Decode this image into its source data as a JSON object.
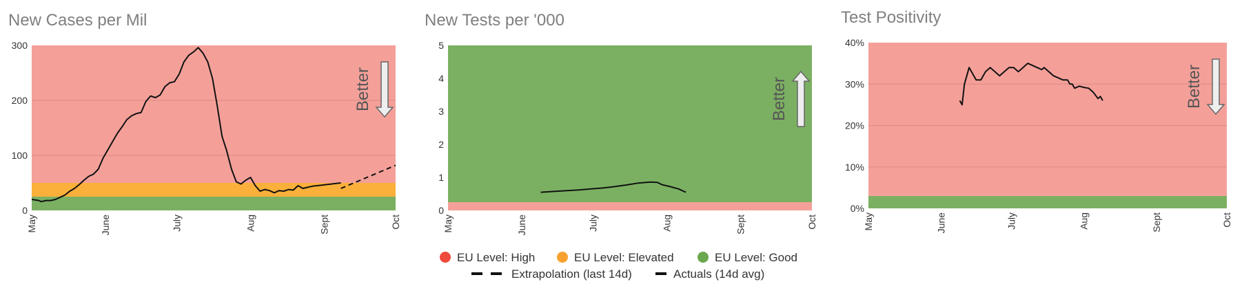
{
  "colors": {
    "high": "#f4a099",
    "elevated": "#fbb03b",
    "good": "#7bb062",
    "gridline": "#d98a84",
    "line": "#111111",
    "arrow_fill": "#eeeeee",
    "arrow_stroke": "#666666",
    "legend_high": "#ef4a3c",
    "legend_elevated": "#f8a12f",
    "legend_good": "#6aa84f"
  },
  "legend": {
    "high": "EU Level: High",
    "elevated": "EU Level: Elevated",
    "good": "EU Level: Good",
    "extrapolation": "Extrapolation (last 14d)",
    "actuals": "Actuals (14d avg)"
  },
  "chart_data": [
    {
      "type": "line",
      "title": "New Cases per Mil",
      "better_label": "Better",
      "better_direction": "down",
      "x_ticks": [
        "May",
        "June",
        "July",
        "Aug",
        "Sept",
        "Oct"
      ],
      "x_range": [
        0,
        153
      ],
      "ylim": [
        0,
        300
      ],
      "y_ticks": [
        0,
        100,
        200,
        300
      ],
      "y_tick_labels": [
        "0",
        "100",
        "200",
        "300"
      ],
      "bands": [
        {
          "level": "good",
          "from": 0,
          "to": 25
        },
        {
          "level": "elevated",
          "from": 25,
          "to": 50
        },
        {
          "level": "high",
          "from": 50,
          "to": 300
        }
      ],
      "gridlines": [
        100,
        200
      ],
      "series": [
        {
          "style": "solid",
          "x": [
            0,
            3,
            4,
            6,
            8,
            10,
            12,
            14,
            16,
            18,
            20,
            22,
            24,
            26,
            28,
            30,
            32,
            34,
            36,
            38,
            40,
            42,
            44,
            46,
            48,
            50,
            52,
            54,
            56,
            58,
            60,
            62,
            64,
            66,
            68,
            70,
            72,
            74,
            76,
            78,
            80,
            82,
            84,
            86,
            88,
            90,
            92,
            94,
            96,
            98,
            100,
            102,
            104,
            106,
            108,
            110,
            112,
            114,
            116,
            118,
            120,
            122,
            124,
            126,
            128,
            130
          ],
          "y": [
            20,
            18,
            16,
            18,
            18,
            20,
            24,
            28,
            35,
            40,
            47,
            55,
            62,
            66,
            75,
            95,
            110,
            125,
            140,
            152,
            165,
            172,
            176,
            178,
            198,
            208,
            205,
            210,
            225,
            232,
            234,
            248,
            270,
            282,
            288,
            296,
            286,
            270,
            240,
            190,
            135,
            108,
            75,
            52,
            48,
            55,
            60,
            45,
            35,
            38,
            36,
            32,
            36,
            35,
            38,
            37,
            45,
            40,
            42,
            44,
            45,
            46,
            47,
            48,
            49,
            50
          ]
        },
        {
          "style": "dashed",
          "x": [
            130,
            153
          ],
          "y": [
            40,
            82
          ]
        }
      ]
    },
    {
      "type": "line",
      "title": "New Tests per '000",
      "better_label": "Better",
      "better_direction": "up",
      "x_ticks": [
        "May",
        "June",
        "July",
        "Aug",
        "Sept",
        "Oct"
      ],
      "x_range": [
        0,
        153
      ],
      "ylim": [
        0,
        5
      ],
      "y_ticks": [
        0,
        1,
        2,
        3,
        4,
        5
      ],
      "y_tick_labels": [
        "0",
        "1",
        "2",
        "3",
        "4",
        "5"
      ],
      "bands": [
        {
          "level": "high",
          "from": 0,
          "to": 0.25
        },
        {
          "level": "good",
          "from": 0.25,
          "to": 5
        }
      ],
      "gridlines": [],
      "series": [
        {
          "style": "solid",
          "x": [
            39,
            45,
            50,
            55,
            60,
            65,
            70,
            75,
            80,
            85,
            88,
            90,
            93,
            97,
            100
          ],
          "y": [
            0.55,
            0.58,
            0.6,
            0.62,
            0.65,
            0.68,
            0.72,
            0.77,
            0.83,
            0.86,
            0.85,
            0.78,
            0.73,
            0.65,
            0.55
          ]
        }
      ]
    },
    {
      "type": "line",
      "title": "Test Positivity",
      "better_label": "Better",
      "better_direction": "down",
      "x_ticks": [
        "May",
        "June",
        "July",
        "Aug",
        "Sept",
        "Oct"
      ],
      "x_range": [
        0,
        153
      ],
      "ylim": [
        0,
        40
      ],
      "y_ticks": [
        0,
        10,
        20,
        30,
        40
      ],
      "y_tick_labels": [
        "0%",
        "10%",
        "20%",
        "30%",
        "40%"
      ],
      "bands": [
        {
          "level": "good",
          "from": 0,
          "to": 3
        },
        {
          "level": "high",
          "from": 3,
          "to": 40
        }
      ],
      "gridlines": [
        10,
        20,
        30
      ],
      "series": [
        {
          "style": "solid",
          "x": [
            39,
            40,
            41,
            42,
            43,
            44,
            45,
            46,
            47,
            48,
            50,
            52,
            54,
            56,
            58,
            60,
            62,
            64,
            66,
            68,
            70,
            72,
            74,
            75,
            77,
            79,
            81,
            83,
            85,
            86,
            87,
            88,
            90,
            92,
            94,
            96,
            98,
            99,
            100
          ],
          "y": [
            26,
            25,
            30,
            32,
            34,
            33,
            32,
            31,
            31,
            31,
            33,
            34,
            33,
            32,
            33,
            34,
            34,
            33,
            34,
            35,
            34.5,
            34,
            33.5,
            34,
            33,
            32,
            31.5,
            31,
            31,
            30,
            30,
            29,
            29.5,
            29.2,
            29,
            28,
            26.5,
            27,
            26
          ]
        }
      ]
    }
  ]
}
